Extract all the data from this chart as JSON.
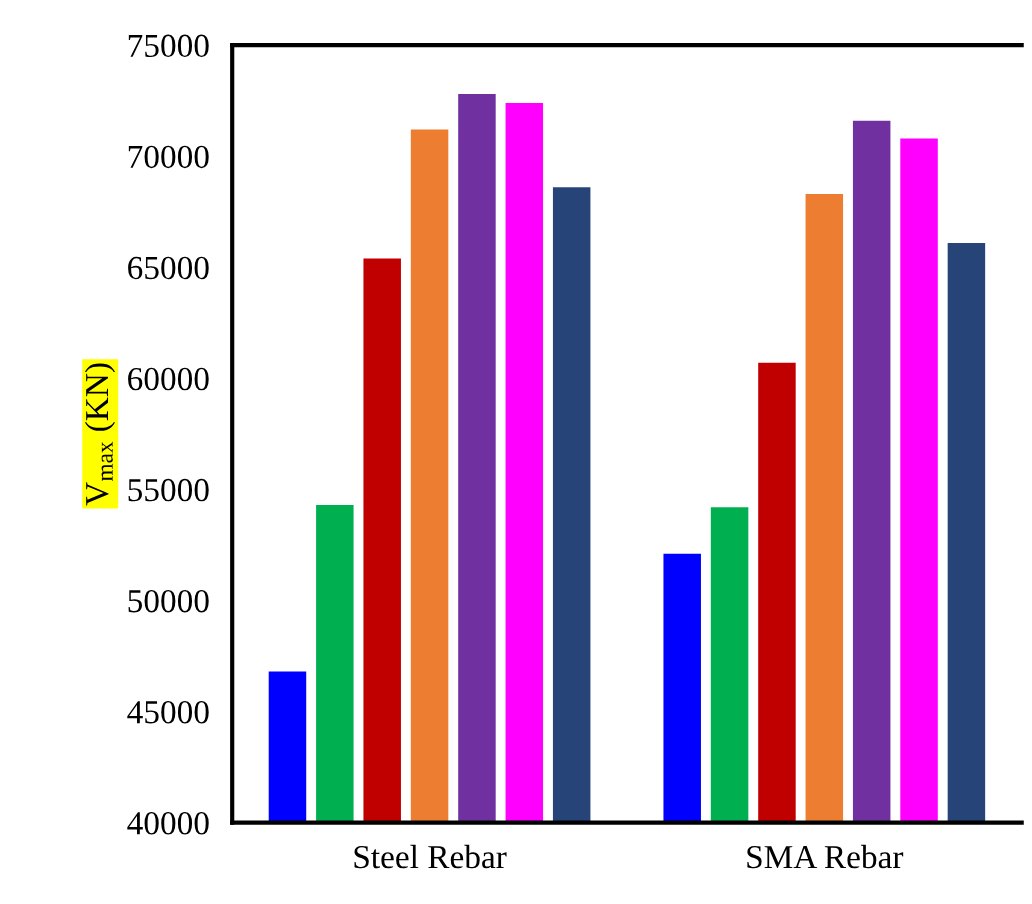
{
  "chart_data": {
    "type": "bar",
    "ylabel": "V$_{max}$ (KN)",
    "categories": [
      "Steel Rebar",
      "SMA Rebar"
    ],
    "series": [
      {
        "color": "#0000ff",
        "values": [
          46800,
          52100
        ]
      },
      {
        "color": "#00b050",
        "values": [
          54300,
          54200
        ]
      },
      {
        "color": "#c00000",
        "values": [
          65400,
          60700
        ]
      },
      {
        "color": "#ed7d31",
        "values": [
          71200,
          68300
        ]
      },
      {
        "color": "#7030a0",
        "values": [
          72800,
          71600
        ]
      },
      {
        "color": "#ff00ff",
        "values": [
          72400,
          70800
        ]
      },
      {
        "color": "#264478",
        "values": [
          68600,
          66100
        ]
      }
    ],
    "ylim": [
      40000,
      75000
    ],
    "yticks": [
      40000,
      45000,
      50000,
      55000,
      60000,
      65000,
      70000,
      75000
    ]
  }
}
